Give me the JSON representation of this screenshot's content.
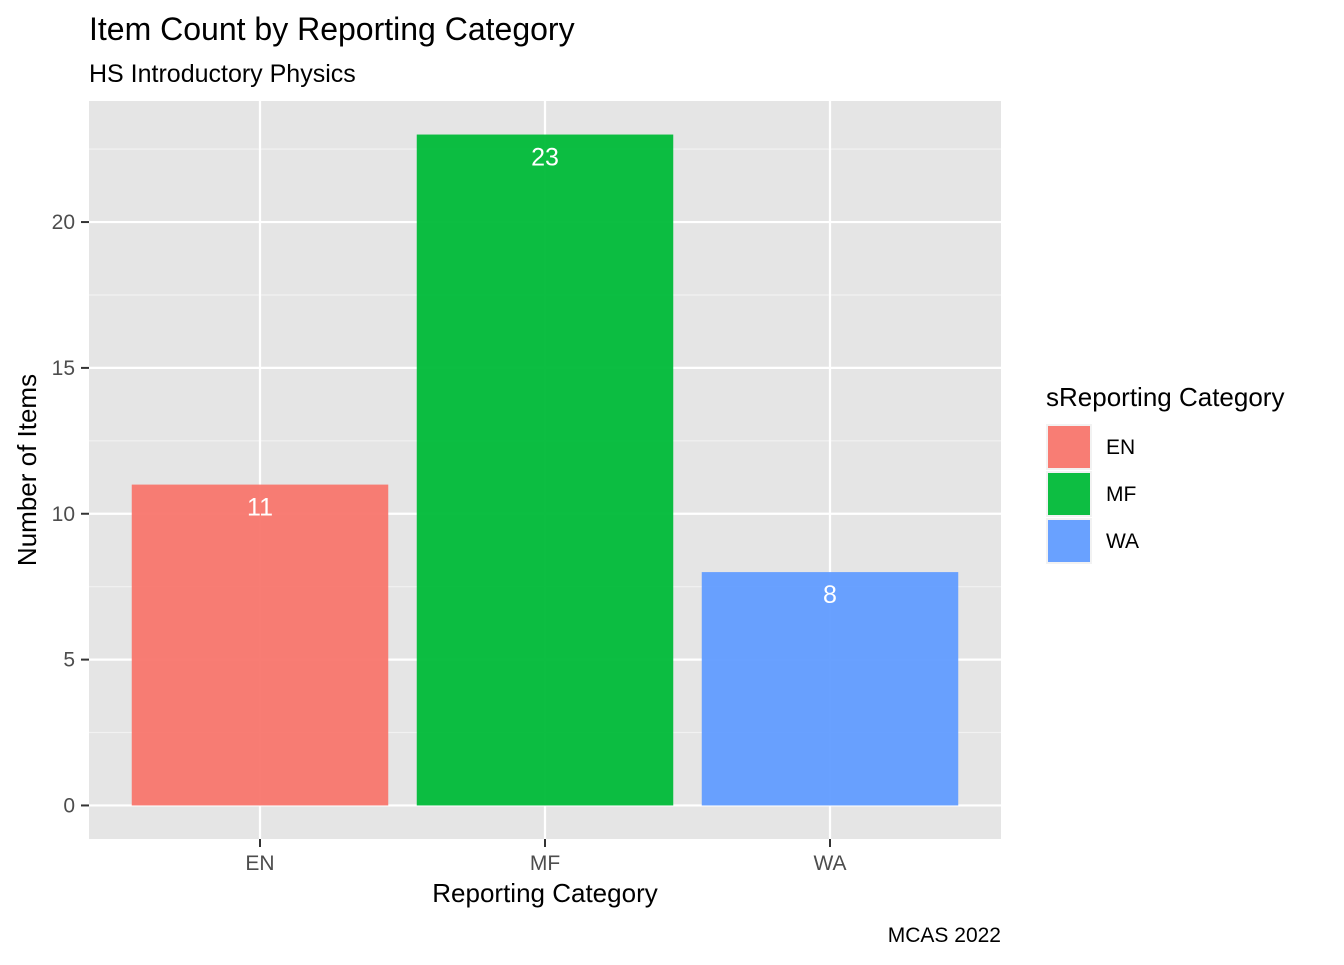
{
  "chart_data": {
    "type": "bar",
    "title": "Item Count by Reporting Category",
    "subtitle": "HS Introductory Physics",
    "xlabel": "Reporting Category",
    "ylabel": "Number of Items",
    "caption": "MCAS 2022",
    "categories": [
      "EN",
      "MF",
      "WA"
    ],
    "values": [
      11,
      23,
      8
    ],
    "colors": [
      "#F8766D",
      "#00BA38",
      "#619CFF"
    ],
    "ylim": [
      0,
      23
    ],
    "yticks": [
      0,
      5,
      10,
      15,
      20
    ],
    "grid": true,
    "legend": {
      "title": "sReporting Category",
      "position": "right",
      "entries": [
        "EN",
        "MF",
        "WA"
      ]
    },
    "panel_background": "#E5E5E5"
  }
}
